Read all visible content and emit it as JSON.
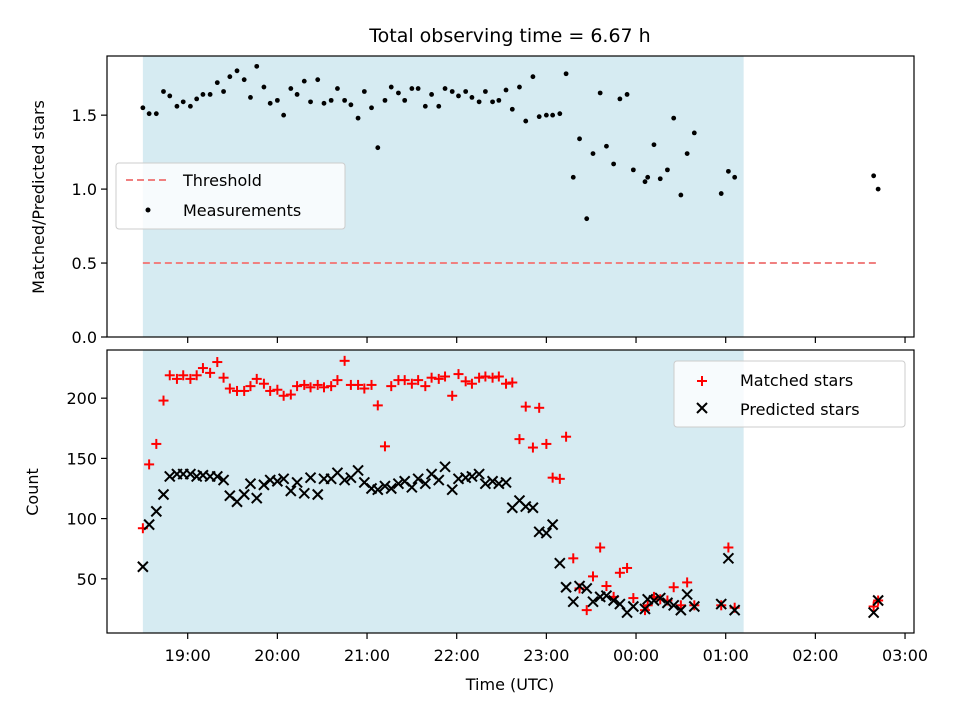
{
  "chart_data": [
    {
      "type": "scatter",
      "title": "Total observing time = 6.67 h",
      "xlabel": "",
      "ylabel": "Matched/Predicted stars",
      "ylim": [
        0,
        1.9
      ],
      "yticks": [
        "0.0",
        "0.5",
        "1.0",
        "1.5"
      ],
      "xlim": [
        18.1,
        27.1
      ],
      "shaded_span": [
        18.5,
        25.2
      ],
      "shade_color": "#add8e6",
      "legend": {
        "placement": "center-left",
        "threshold_label": "Threshold",
        "measurements_label": "Measurements"
      },
      "threshold": {
        "name": "Threshold",
        "value": 0.5,
        "x": [
          18.5,
          26.7
        ],
        "color": "#f08080",
        "style": "dashed"
      },
      "series": [
        {
          "name": "Measurements",
          "color": "#000000",
          "marker": "dot",
          "points": [
            [
              18.5,
              1.55
            ],
            [
              18.57,
              1.51
            ],
            [
              18.65,
              1.51
            ],
            [
              18.73,
              1.66
            ],
            [
              18.8,
              1.63
            ],
            [
              18.88,
              1.56
            ],
            [
              18.95,
              1.59
            ],
            [
              19.03,
              1.56
            ],
            [
              19.1,
              1.61
            ],
            [
              19.17,
              1.64
            ],
            [
              19.25,
              1.64
            ],
            [
              19.33,
              1.72
            ],
            [
              19.4,
              1.66
            ],
            [
              19.47,
              1.76
            ],
            [
              19.55,
              1.8
            ],
            [
              19.63,
              1.74
            ],
            [
              19.7,
              1.62
            ],
            [
              19.77,
              1.83
            ],
            [
              19.85,
              1.69
            ],
            [
              19.92,
              1.58
            ],
            [
              20.0,
              1.6
            ],
            [
              20.07,
              1.5
            ],
            [
              20.15,
              1.68
            ],
            [
              20.22,
              1.64
            ],
            [
              20.3,
              1.73
            ],
            [
              20.37,
              1.59
            ],
            [
              20.45,
              1.74
            ],
            [
              20.52,
              1.58
            ],
            [
              20.6,
              1.6
            ],
            [
              20.67,
              1.68
            ],
            [
              20.75,
              1.6
            ],
            [
              20.82,
              1.57
            ],
            [
              20.9,
              1.48
            ],
            [
              20.97,
              1.66
            ],
            [
              21.05,
              1.55
            ],
            [
              21.12,
              1.28
            ],
            [
              21.2,
              1.6
            ],
            [
              21.27,
              1.69
            ],
            [
              21.35,
              1.65
            ],
            [
              21.42,
              1.6
            ],
            [
              21.5,
              1.68
            ],
            [
              21.57,
              1.68
            ],
            [
              21.65,
              1.56
            ],
            [
              21.72,
              1.64
            ],
            [
              21.8,
              1.56
            ],
            [
              21.87,
              1.68
            ],
            [
              21.95,
              1.66
            ],
            [
              22.02,
              1.63
            ],
            [
              22.1,
              1.66
            ],
            [
              22.17,
              1.62
            ],
            [
              22.25,
              1.59
            ],
            [
              22.32,
              1.66
            ],
            [
              22.4,
              1.59
            ],
            [
              22.47,
              1.6
            ],
            [
              22.55,
              1.67
            ],
            [
              22.62,
              1.54
            ],
            [
              22.7,
              1.69
            ],
            [
              22.77,
              1.46
            ],
            [
              22.85,
              1.76
            ],
            [
              22.92,
              1.49
            ],
            [
              23.0,
              1.5
            ],
            [
              23.07,
              1.5
            ],
            [
              23.15,
              1.51
            ],
            [
              23.22,
              1.78
            ],
            [
              23.3,
              1.08
            ],
            [
              23.37,
              1.34
            ],
            [
              23.45,
              0.8
            ],
            [
              23.52,
              1.24
            ],
            [
              23.6,
              1.65
            ],
            [
              23.67,
              1.29
            ],
            [
              23.75,
              1.17
            ],
            [
              23.82,
              1.61
            ],
            [
              23.9,
              1.64
            ],
            [
              23.97,
              1.13
            ],
            [
              24.1,
              1.05
            ],
            [
              24.13,
              1.08
            ],
            [
              24.2,
              1.3
            ],
            [
              24.27,
              1.07
            ],
            [
              24.35,
              1.13
            ],
            [
              24.42,
              1.48
            ],
            [
              24.5,
              0.96
            ],
            [
              24.57,
              1.24
            ],
            [
              24.65,
              1.38
            ],
            [
              24.95,
              0.97
            ],
            [
              25.03,
              1.12
            ],
            [
              25.1,
              1.08
            ],
            [
              26.65,
              1.09
            ],
            [
              26.7,
              1.0
            ]
          ]
        }
      ]
    },
    {
      "type": "scatter",
      "title": "",
      "xlabel": "Time (UTC)",
      "ylabel": "Count",
      "ylim": [
        5,
        240
      ],
      "yticks": [
        "50",
        "100",
        "150",
        "200"
      ],
      "xlim": [
        18.1,
        27.1
      ],
      "xticks": [
        "19:00",
        "20:00",
        "21:00",
        "22:00",
        "23:00",
        "00:00",
        "01:00",
        "02:00",
        "03:00"
      ],
      "shaded_span": [
        18.5,
        25.2
      ],
      "shade_color": "#add8e6",
      "legend": {
        "placement": "top-right",
        "matched_label": "Matched stars",
        "predicted_label": "Predicted stars"
      },
      "series": [
        {
          "name": "Matched stars",
          "color": "#ff0000",
          "marker": "plus",
          "points": [
            [
              18.5,
              92
            ],
            [
              18.57,
              145
            ],
            [
              18.65,
              162
            ],
            [
              18.73,
              198
            ],
            [
              18.8,
              219
            ],
            [
              18.88,
              216
            ],
            [
              18.95,
              219
            ],
            [
              19.03,
              216
            ],
            [
              19.1,
              219
            ],
            [
              19.17,
              225
            ],
            [
              19.25,
              221
            ],
            [
              19.33,
              230
            ],
            [
              19.4,
              217
            ],
            [
              19.47,
              208
            ],
            [
              19.55,
              206
            ],
            [
              19.63,
              206
            ],
            [
              19.7,
              210
            ],
            [
              19.77,
              216
            ],
            [
              19.85,
              212
            ],
            [
              19.92,
              206
            ],
            [
              20.0,
              207
            ],
            [
              20.07,
              202
            ],
            [
              20.15,
              203
            ],
            [
              20.22,
              210
            ],
            [
              20.3,
              211
            ],
            [
              20.37,
              209
            ],
            [
              20.45,
              211
            ],
            [
              20.52,
              209
            ],
            [
              20.6,
              210
            ],
            [
              20.67,
              215
            ],
            [
              20.75,
              231
            ],
            [
              20.82,
              211
            ],
            [
              20.9,
              211
            ],
            [
              20.97,
              208
            ],
            [
              21.05,
              211
            ],
            [
              21.12,
              194
            ],
            [
              21.2,
              160
            ],
            [
              21.27,
              210
            ],
            [
              21.35,
              215
            ],
            [
              21.42,
              215
            ],
            [
              21.5,
              212
            ],
            [
              21.57,
              215
            ],
            [
              21.65,
              210
            ],
            [
              21.72,
              217
            ],
            [
              21.8,
              216
            ],
            [
              21.87,
              218
            ],
            [
              21.95,
              202
            ],
            [
              22.02,
              220
            ],
            [
              22.1,
              214
            ],
            [
              22.17,
              212
            ],
            [
              22.25,
              217
            ],
            [
              22.32,
              218
            ],
            [
              22.4,
              217
            ],
            [
              22.47,
              218
            ],
            [
              22.55,
              212
            ],
            [
              22.62,
              213
            ],
            [
              22.7,
              166
            ],
            [
              22.77,
              193
            ],
            [
              22.85,
              159
            ],
            [
              22.92,
              192
            ],
            [
              23.0,
              162
            ],
            [
              23.07,
              134
            ],
            [
              23.15,
              133
            ],
            [
              23.22,
              168
            ],
            [
              23.3,
              67
            ],
            [
              23.37,
              42
            ],
            [
              23.45,
              24
            ],
            [
              23.52,
              52
            ],
            [
              23.6,
              76
            ],
            [
              23.67,
              44
            ],
            [
              23.75,
              35
            ],
            [
              23.82,
              55
            ],
            [
              23.9,
              59
            ],
            [
              23.97,
              34
            ],
            [
              24.1,
              24
            ],
            [
              24.13,
              28
            ],
            [
              24.2,
              35
            ],
            [
              24.27,
              33
            ],
            [
              24.35,
              32
            ],
            [
              24.42,
              43
            ],
            [
              24.5,
              28
            ],
            [
              24.57,
              47
            ],
            [
              24.65,
              28
            ],
            [
              24.95,
              28
            ],
            [
              25.03,
              76
            ],
            [
              25.1,
              26
            ],
            [
              26.65,
              27
            ],
            [
              26.7,
              32
            ]
          ]
        },
        {
          "name": "Predicted stars",
          "color": "#000000",
          "marker": "x",
          "points": [
            [
              18.5,
              60
            ],
            [
              18.57,
              95
            ],
            [
              18.65,
              106
            ],
            [
              18.73,
              120
            ],
            [
              18.8,
              135
            ],
            [
              18.88,
              137
            ],
            [
              18.95,
              137
            ],
            [
              19.03,
              137
            ],
            [
              19.1,
              135
            ],
            [
              19.17,
              136
            ],
            [
              19.25,
              135
            ],
            [
              19.33,
              135
            ],
            [
              19.4,
              132
            ],
            [
              19.47,
              119
            ],
            [
              19.55,
              114
            ],
            [
              19.63,
              120
            ],
            [
              19.7,
              129
            ],
            [
              19.77,
              117
            ],
            [
              19.85,
              128
            ],
            [
              19.92,
              132
            ],
            [
              20.0,
              131
            ],
            [
              20.07,
              133
            ],
            [
              20.15,
              123
            ],
            [
              20.22,
              130
            ],
            [
              20.3,
              121
            ],
            [
              20.37,
              134
            ],
            [
              20.45,
              120
            ],
            [
              20.52,
              133
            ],
            [
              20.6,
              133
            ],
            [
              20.67,
              138
            ],
            [
              20.75,
              132
            ],
            [
              20.82,
              134
            ],
            [
              20.9,
              140
            ],
            [
              20.97,
              130
            ],
            [
              21.05,
              125
            ],
            [
              21.12,
              124
            ],
            [
              21.2,
              127
            ],
            [
              21.27,
              125
            ],
            [
              21.35,
              129
            ],
            [
              21.42,
              131
            ],
            [
              21.5,
              126
            ],
            [
              21.57,
              133
            ],
            [
              21.65,
              129
            ],
            [
              21.72,
              137
            ],
            [
              21.8,
              132
            ],
            [
              21.87,
              143
            ],
            [
              21.95,
              124
            ],
            [
              22.02,
              133
            ],
            [
              22.1,
              134
            ],
            [
              22.17,
              135
            ],
            [
              22.25,
              137
            ],
            [
              22.32,
              129
            ],
            [
              22.4,
              131
            ],
            [
              22.47,
              129
            ],
            [
              22.55,
              130
            ],
            [
              22.62,
              109
            ],
            [
              22.7,
              115
            ],
            [
              22.77,
              110
            ],
            [
              22.85,
              109
            ],
            [
              22.92,
              89
            ],
            [
              23.0,
              88
            ],
            [
              23.07,
              95
            ],
            [
              23.15,
              63
            ],
            [
              23.22,
              43
            ],
            [
              23.3,
              31
            ],
            [
              23.37,
              44
            ],
            [
              23.45,
              42
            ],
            [
              23.52,
              31
            ],
            [
              23.6,
              35
            ],
            [
              23.67,
              36
            ],
            [
              23.75,
              32
            ],
            [
              23.82,
              29
            ],
            [
              23.9,
              22
            ],
            [
              23.97,
              27
            ],
            [
              24.1,
              25
            ],
            [
              24.13,
              33
            ],
            [
              24.2,
              32
            ],
            [
              24.27,
              34
            ],
            [
              24.35,
              30
            ],
            [
              24.42,
              28
            ],
            [
              24.5,
              24
            ],
            [
              24.57,
              37
            ],
            [
              24.65,
              27
            ],
            [
              24.95,
              29
            ],
            [
              25.03,
              67
            ],
            [
              25.1,
              24
            ],
            [
              26.65,
              22
            ],
            [
              26.7,
              32
            ]
          ]
        }
      ]
    }
  ]
}
